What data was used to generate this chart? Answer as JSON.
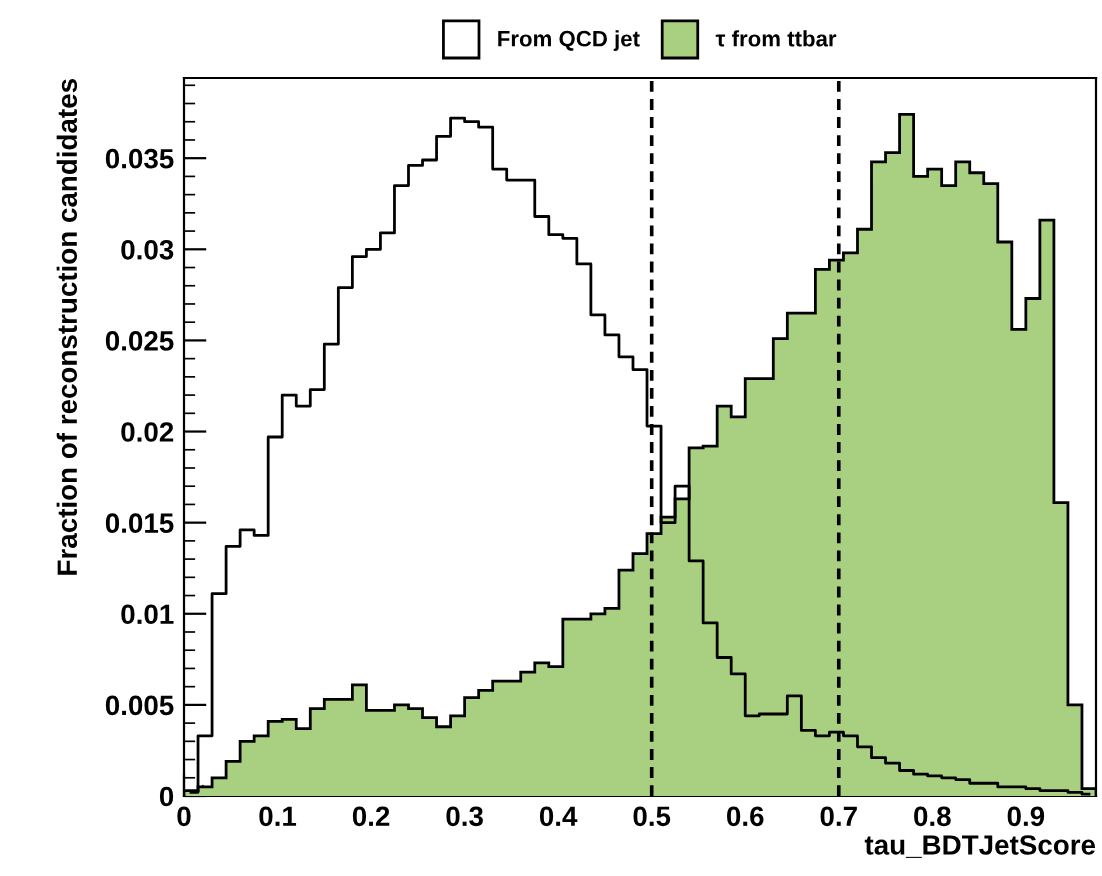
{
  "chart_data": {
    "type": "histogram",
    "xlabel": "tau_BDTJetScore",
    "ylabel": "Fraction of reconstruction candidates",
    "bins": [
      0,
      0.015,
      0.03,
      0.045,
      0.06,
      0.075,
      0.09,
      0.105,
      0.12,
      0.135,
      0.15,
      0.165,
      0.18,
      0.195,
      0.21,
      0.225,
      0.24,
      0.255,
      0.27,
      0.285,
      0.3,
      0.315,
      0.33,
      0.345,
      0.36,
      0.375,
      0.39,
      0.405,
      0.42,
      0.435,
      0.45,
      0.465,
      0.48,
      0.495,
      0.51,
      0.525,
      0.54,
      0.555,
      0.57,
      0.585,
      0.6,
      0.615,
      0.63,
      0.645,
      0.66,
      0.675,
      0.69,
      0.705,
      0.72,
      0.735,
      0.75,
      0.765,
      0.78,
      0.795,
      0.81,
      0.825,
      0.84,
      0.855,
      0.87,
      0.885,
      0.9,
      0.915,
      0.93,
      0.945,
      0.96,
      0.975
    ],
    "series": [
      {
        "name": "τ from ttbar",
        "color": "#a8d080",
        "values": [
          0.0003,
          0.0005,
          0.001,
          0.0019,
          0.003,
          0.0033,
          0.0041,
          0.0042,
          0.0037,
          0.0048,
          0.0053,
          0.0053,
          0.0061,
          0.0047,
          0.0047,
          0.005,
          0.0048,
          0.0043,
          0.0038,
          0.0044,
          0.0054,
          0.0058,
          0.0063,
          0.0063,
          0.0068,
          0.0073,
          0.0071,
          0.0097,
          0.0097,
          0.01,
          0.0103,
          0.0124,
          0.0133,
          0.0144,
          0.0153,
          0.0163,
          0.0191,
          0.0192,
          0.0214,
          0.0208,
          0.0229,
          0.0229,
          0.0251,
          0.0265,
          0.0265,
          0.0289,
          0.0294,
          0.0298,
          0.0311,
          0.0348,
          0.0353,
          0.0374,
          0.034,
          0.0344,
          0.0335,
          0.0348,
          0.0342,
          0.0336,
          0.0304,
          0.0256,
          0.0273,
          0.0316,
          0.0161,
          0.005,
          0.0004
        ]
      },
      {
        "name": "From QCD jet",
        "type": "step",
        "color": "#000000",
        "x": [
          0.0075,
          0.0225,
          0.0375,
          0.0525,
          0.0675,
          0.0825,
          0.0975,
          0.1125,
          0.1275,
          0.1425,
          0.1575,
          0.1725,
          0.1875,
          0.2025,
          0.2175,
          0.2325,
          0.2475,
          0.2625,
          0.2775,
          0.2925,
          0.3075,
          0.3225,
          0.3375,
          0.3525,
          0.3675,
          0.3825,
          0.3975,
          0.4125,
          0.4275,
          0.4425,
          0.4575,
          0.4725,
          0.4875,
          0.5025,
          0.5175,
          0.5325,
          0.5475,
          0.5625,
          0.5775,
          0.5925,
          0.6075,
          0.6225,
          0.6375,
          0.6525,
          0.6675,
          0.6825,
          0.6975,
          0.7125,
          0.7275,
          0.7425,
          0.7575,
          0.7725,
          0.7875,
          0.8025,
          0.8175,
          0.8325,
          0.8475,
          0.8625,
          0.8775,
          0.8925,
          0.9075,
          0.9225,
          0.9375,
          0.9525,
          0.9675
        ],
        "values": [
          0.0002,
          0.0033,
          0.0111,
          0.0137,
          0.0146,
          0.0143,
          0.0197,
          0.022,
          0.0214,
          0.0223,
          0.0248,
          0.0279,
          0.0296,
          0.03,
          0.0309,
          0.0335,
          0.0346,
          0.0349,
          0.0362,
          0.0372,
          0.037,
          0.0367,
          0.0344,
          0.0338,
          0.0338,
          0.0318,
          0.0308,
          0.0306,
          0.0292,
          0.0264,
          0.0253,
          0.0241,
          0.0234,
          0.0203,
          0.015,
          0.017,
          0.0129,
          0.0095,
          0.0076,
          0.0067,
          0.0044,
          0.0045,
          0.0045,
          0.0055,
          0.0036,
          0.0033,
          0.0035,
          0.0033,
          0.0027,
          0.0021,
          0.0018,
          0.0014,
          0.0012,
          0.0011,
          0.001,
          0.0009,
          0.0007,
          0.0007,
          0.0005,
          0.0005,
          0.0004,
          0.0003,
          0.0003,
          0.0002,
          0.0001
        ]
      }
    ],
    "xlim": [
      0,
      0.975
    ],
    "xticks": [
      0,
      0.1,
      0.2,
      0.3,
      0.4,
      0.5,
      0.6,
      0.7,
      0.8,
      0.9
    ],
    "ylim": [
      0,
      0.0394
    ],
    "yticks": [
      0,
      0.005,
      0.01,
      0.015,
      0.02,
      0.025,
      0.03,
      0.035
    ],
    "ref_lines": [
      {
        "axis": "x",
        "value": 0.5,
        "color": "#000000",
        "line_style": "dashed"
      },
      {
        "axis": "x",
        "value": 0.7,
        "color": "#000000",
        "line_style": "dashed"
      }
    ],
    "legend": "top",
    "grid": false
  }
}
